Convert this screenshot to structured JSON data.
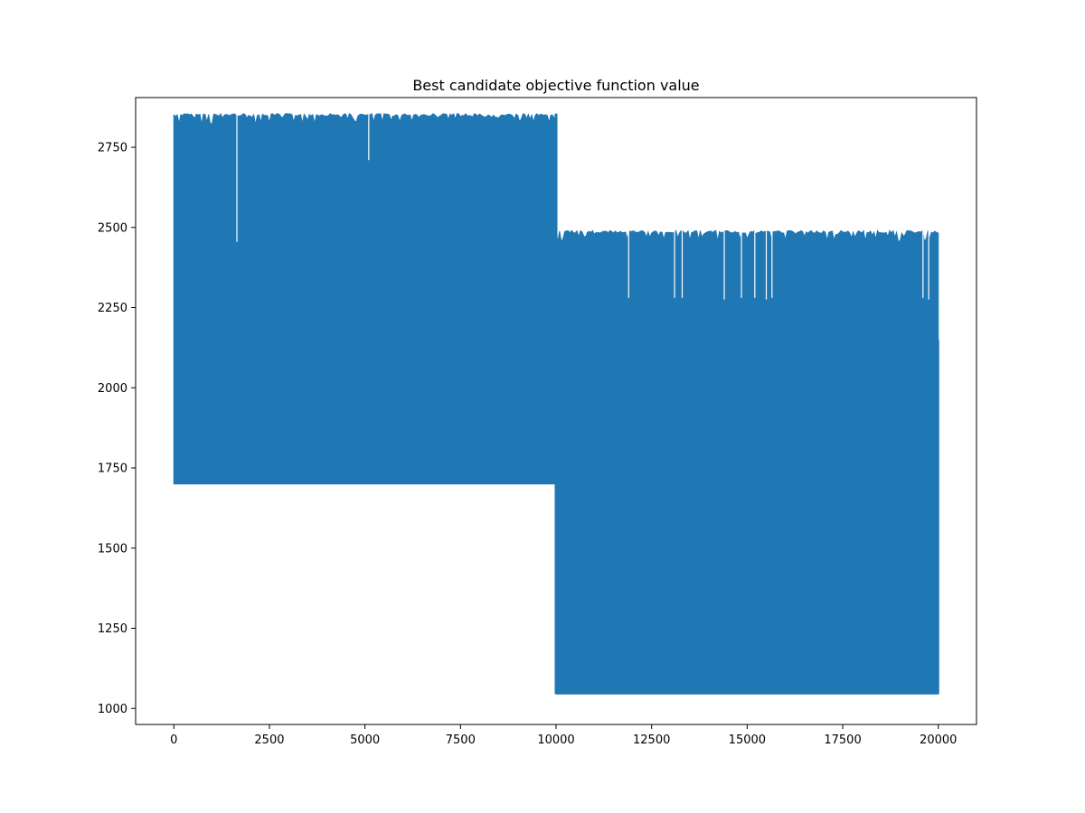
{
  "chart_data": {
    "type": "line",
    "title": "Best candidate objective function value",
    "xlabel": "",
    "ylabel": "",
    "xlim": [
      -1000,
      21000
    ],
    "ylim": [
      950,
      2905
    ],
    "x_ticks": [
      0,
      2500,
      5000,
      7500,
      10000,
      12500,
      15000,
      17500,
      20000
    ],
    "y_ticks": [
      1000,
      1250,
      1500,
      1750,
      2000,
      2250,
      2500,
      2750
    ],
    "grid": false,
    "legend": "none",
    "color": "#1f77b4",
    "series": [
      {
        "x_range": [
          0,
          20000
        ],
        "segments": [
          {
            "x_start": 0,
            "x_end": 10000,
            "y_min": 1700,
            "y_max": 2855
          },
          {
            "x_start": 10000,
            "x_end": 20000,
            "y_min": 1045,
            "y_max": 2490
          }
        ],
        "notable_dips": [
          {
            "x": 1650,
            "y": 2455
          },
          {
            "x": 5100,
            "y": 2710
          },
          {
            "x": 11900,
            "y": 2280
          },
          {
            "x": 13100,
            "y": 2280
          },
          {
            "x": 13300,
            "y": 2280
          },
          {
            "x": 14400,
            "y": 2275
          },
          {
            "x": 14850,
            "y": 2280
          },
          {
            "x": 15200,
            "y": 2280
          },
          {
            "x": 15500,
            "y": 2275
          },
          {
            "x": 15650,
            "y": 2280
          },
          {
            "x": 19600,
            "y": 2280
          },
          {
            "x": 19750,
            "y": 2275
          }
        ],
        "end_value": 2150
      }
    ]
  }
}
